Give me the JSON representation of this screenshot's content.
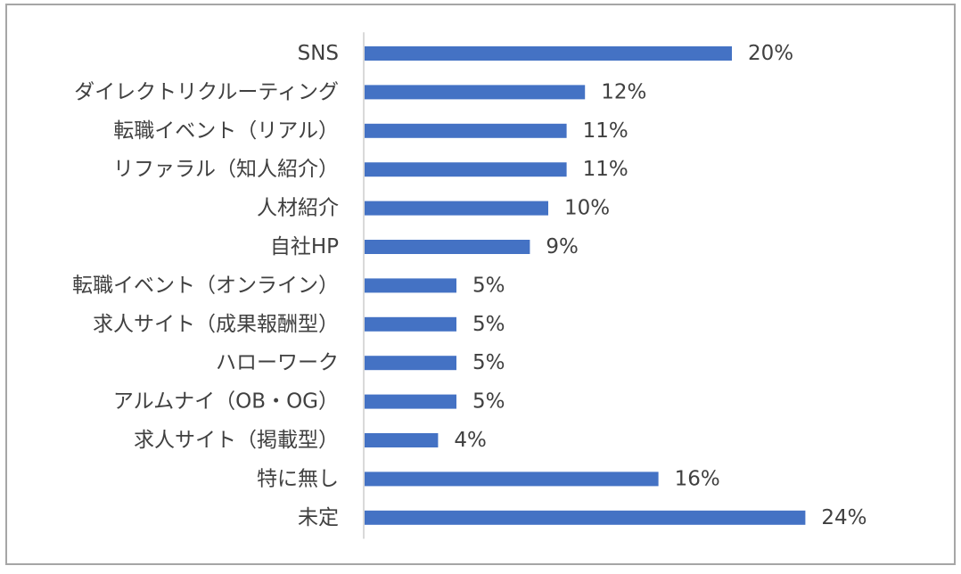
{
  "chart_data": {
    "type": "bar",
    "orientation": "horizontal",
    "categories": [
      "SNS",
      "ダイレクトリクルーティング",
      "転職イベント（リアル）",
      "リファラル（知人紹介）",
      "人材紹介",
      "自社HP",
      "転職イベント（オンライン）",
      "求人サイト（成果報酬型）",
      "ハローワーク",
      "アルムナイ（OB・OG）",
      "求人サイト（掲載型）",
      "特に無し",
      "未定"
    ],
    "values": [
      20,
      12,
      11,
      11,
      10,
      9,
      5,
      5,
      5,
      5,
      4,
      16,
      24
    ],
    "value_labels": [
      "20%",
      "12%",
      "11%",
      "11%",
      "10%",
      "9%",
      "5%",
      "5%",
      "5%",
      "5%",
      "4%",
      "16%",
      "24%"
    ],
    "unit": "%",
    "xlim": [
      0,
      25
    ],
    "bar_color": "#4472c4",
    "axis_color": "#d9d9d9",
    "text_color": "#404040",
    "grid": false,
    "legend": "none"
  }
}
